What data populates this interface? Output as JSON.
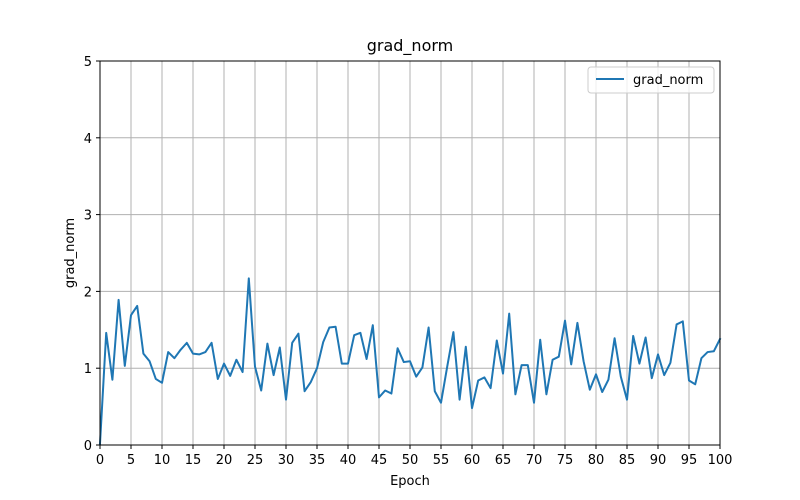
{
  "chart_data": {
    "type": "line",
    "title": "grad_norm",
    "xlabel": "Epoch",
    "ylabel": "grad_norm",
    "xlim": [
      0,
      100
    ],
    "ylim": [
      0,
      5
    ],
    "xticks": [
      0,
      5,
      10,
      15,
      20,
      25,
      30,
      35,
      40,
      45,
      50,
      55,
      60,
      65,
      70,
      75,
      80,
      85,
      90,
      95,
      100
    ],
    "yticks": [
      0,
      1,
      2,
      3,
      4,
      5
    ],
    "grid": true,
    "legend_position": "top-right",
    "colors": {
      "series": "#1f77b4",
      "grid": "#b0b0b0",
      "axis": "#000000"
    },
    "series": [
      {
        "name": "grad_norm",
        "x": [
          0,
          1,
          2,
          3,
          4,
          5,
          6,
          7,
          8,
          9,
          10,
          11,
          12,
          13,
          14,
          15,
          16,
          17,
          18,
          19,
          20,
          21,
          22,
          23,
          24,
          25,
          26,
          27,
          28,
          29,
          30,
          31,
          32,
          33,
          34,
          35,
          36,
          37,
          38,
          39,
          40,
          41,
          42,
          43,
          44,
          45,
          46,
          47,
          48,
          49,
          50,
          51,
          52,
          53,
          54,
          55,
          56,
          57,
          58,
          59,
          60,
          61,
          62,
          63,
          64,
          65,
          66,
          67,
          68,
          69,
          70,
          71,
          72,
          73,
          74,
          75,
          76,
          77,
          78,
          79,
          80,
          81,
          82,
          83,
          84,
          85,
          86,
          87,
          88,
          89,
          90,
          91,
          92,
          93,
          94,
          95,
          96,
          97,
          98,
          99,
          100
        ],
        "values": [
          0.02,
          1.46,
          0.85,
          1.89,
          1.03,
          1.69,
          1.81,
          1.19,
          1.09,
          0.86,
          0.81,
          1.21,
          1.13,
          1.24,
          1.33,
          1.19,
          1.18,
          1.21,
          1.33,
          0.86,
          1.06,
          0.9,
          1.11,
          0.95,
          2.17,
          1.02,
          0.71,
          1.32,
          0.91,
          1.27,
          0.59,
          1.33,
          1.45,
          0.7,
          0.82,
          1.0,
          1.34,
          1.53,
          1.54,
          1.06,
          1.06,
          1.43,
          1.46,
          1.12,
          1.56,
          0.62,
          0.71,
          0.67,
          1.26,
          1.08,
          1.09,
          0.89,
          1.01,
          1.53,
          0.7,
          0.55,
          1.02,
          1.47,
          0.59,
          1.28,
          0.48,
          0.84,
          0.88,
          0.74,
          1.36,
          0.93,
          1.71,
          0.66,
          1.04,
          1.04,
          0.55,
          1.37,
          0.66,
          1.11,
          1.15,
          1.62,
          1.05,
          1.59,
          1.09,
          0.72,
          0.92,
          0.69,
          0.85,
          1.39,
          0.89,
          0.59,
          1.42,
          1.06,
          1.4,
          0.87,
          1.18,
          0.91,
          1.07,
          1.57,
          1.61,
          0.84,
          0.79,
          1.13,
          1.21,
          1.22,
          1.38
        ]
      }
    ]
  }
}
